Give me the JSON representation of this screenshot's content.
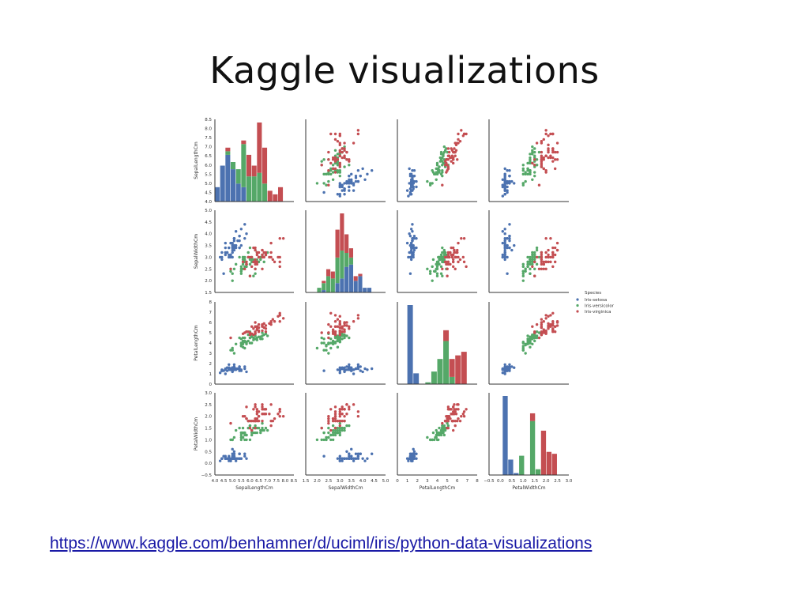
{
  "slide": {
    "title": "Kaggle visualizations",
    "link": "https://www.kaggle.com/benhamner/d/uciml/iris/python-data-visualizations"
  },
  "chart_data": {
    "type": "scatter",
    "subtype": "pairplot",
    "variables": [
      "SepalLengthCm",
      "SepalWidthCm",
      "PetalLengthCm",
      "PetalWidthCm"
    ],
    "axis_ranges": {
      "SepalLengthCm": [
        4.0,
        8.5
      ],
      "SepalWidthCm": [
        1.5,
        5.0
      ],
      "PetalLengthCm": [
        0,
        8
      ],
      "PetalWidthCm": [
        -0.5,
        3.0
      ]
    },
    "ticks": {
      "SepalLengthCm": [
        "4.0",
        "4.5",
        "5.0",
        "5.5",
        "6.0",
        "6.5",
        "7.0",
        "7.5",
        "8.0",
        "8.5"
      ],
      "SepalWidthCm": [
        "1.5",
        "2.0",
        "2.5",
        "3.0",
        "3.5",
        "4.0",
        "4.5",
        "5.0"
      ],
      "PetalLengthCm": [
        "0",
        "1",
        "2",
        "3",
        "4",
        "5",
        "6",
        "7",
        "8"
      ],
      "PetalWidthCm": [
        "−0.5",
        "0.0",
        "0.5",
        "1.0",
        "1.5",
        "2.0",
        "2.5",
        "3.0"
      ]
    },
    "legend": {
      "title": "Species",
      "placement": "right",
      "entries": [
        {
          "name": "Iris-setosa",
          "color": "#4c72b0"
        },
        {
          "name": "Iris-versicolor",
          "color": "#55a868"
        },
        {
          "name": "Iris-virginica",
          "color": "#c44e52"
        }
      ]
    },
    "grid": false,
    "histograms": {
      "SepalLengthCm": {
        "bins": [
          [
            4.0,
            4.3
          ],
          [
            4.3,
            4.6
          ],
          [
            4.6,
            4.9
          ],
          [
            4.9,
            5.2
          ],
          [
            5.2,
            5.5
          ],
          [
            5.5,
            5.8
          ],
          [
            5.8,
            6.1
          ],
          [
            6.1,
            6.4
          ],
          [
            6.4,
            6.7
          ],
          [
            6.7,
            7.0
          ],
          [
            7.0,
            7.3
          ],
          [
            7.3,
            7.6
          ],
          [
            7.6,
            7.9
          ]
        ],
        "setosa": [
          4,
          10,
          13,
          9,
          5,
          4,
          0,
          0,
          0,
          0,
          0,
          0,
          0
        ],
        "versicolor": [
          0,
          0,
          1,
          2,
          4,
          12,
          7,
          7,
          8,
          5,
          0,
          0,
          0
        ],
        "virginica": [
          0,
          0,
          1,
          0,
          0,
          1,
          6,
          3,
          14,
          10,
          3,
          2,
          4
        ]
      },
      "SepalWidthCm": {
        "bins": [
          [
            2.0,
            2.2
          ],
          [
            2.2,
            2.4
          ],
          [
            2.4,
            2.6
          ],
          [
            2.6,
            2.8
          ],
          [
            2.8,
            3.0
          ],
          [
            3.0,
            3.2
          ],
          [
            3.2,
            3.4
          ],
          [
            3.4,
            3.6
          ],
          [
            3.6,
            3.8
          ],
          [
            3.8,
            4.0
          ],
          [
            4.0,
            4.2
          ],
          [
            4.2,
            4.4
          ]
        ],
        "setosa": [
          0,
          1,
          0,
          0,
          4,
          6,
          11,
          12,
          5,
          7,
          2,
          2
        ],
        "versicolor": [
          2,
          3,
          7,
          6,
          11,
          12,
          6,
          3,
          0,
          0,
          0,
          0
        ],
        "virginica": [
          0,
          1,
          3,
          3,
          12,
          16,
          8,
          4,
          2,
          1,
          0,
          0
        ]
      },
      "PetalLengthCm": {
        "bins": [
          [
            1.0,
            1.6
          ],
          [
            1.6,
            2.2
          ],
          [
            2.2,
            2.8
          ],
          [
            2.8,
            3.4
          ],
          [
            3.4,
            4.0
          ],
          [
            4.0,
            4.6
          ],
          [
            4.6,
            5.2
          ],
          [
            5.2,
            5.8
          ],
          [
            5.8,
            6.4
          ],
          [
            6.4,
            7.0
          ]
        ],
        "setosa": [
          44,
          6,
          0,
          0,
          0,
          0,
          0,
          0,
          0,
          0
        ],
        "versicolor": [
          0,
          0,
          0,
          1,
          7,
          14,
          24,
          4,
          0,
          0
        ],
        "virginica": [
          0,
          0,
          0,
          0,
          0,
          0,
          6,
          10,
          16,
          18
        ]
      },
      "PetalWidthCm": {
        "bins": [
          [
            0.1,
            0.34
          ],
          [
            0.34,
            0.58
          ],
          [
            0.58,
            0.82
          ],
          [
            0.82,
            1.06
          ],
          [
            1.06,
            1.3
          ],
          [
            1.3,
            1.54
          ],
          [
            1.54,
            1.78
          ],
          [
            1.78,
            2.02
          ],
          [
            2.02,
            2.26
          ],
          [
            2.26,
            2.5
          ]
        ],
        "setosa": [
          41,
          8,
          1,
          0,
          0,
          0,
          0,
          0,
          0,
          0
        ],
        "versicolor": [
          0,
          0,
          0,
          10,
          0,
          28,
          3,
          0,
          0,
          0
        ],
        "virginica": [
          0,
          0,
          0,
          0,
          0,
          4,
          0,
          23,
          12,
          11
        ]
      }
    },
    "species_points": {
      "setosa": {
        "SepalLengthCm": [
          5.1,
          4.9,
          4.7,
          4.6,
          5.0,
          5.4,
          4.6,
          5.0,
          4.4,
          4.9,
          5.4,
          4.8,
          4.8,
          4.3,
          5.8,
          5.7,
          5.4,
          5.1,
          5.7,
          5.1,
          5.4,
          5.1,
          4.6,
          5.1,
          4.8,
          5.0,
          5.0,
          5.2,
          5.2,
          4.7,
          4.8,
          5.4,
          5.2,
          5.5,
          4.9,
          5.0,
          5.5,
          4.9,
          4.4,
          5.1,
          5.0,
          4.5,
          4.4,
          5.0,
          5.1,
          4.8,
          5.1,
          4.6,
          5.3,
          5.0
        ],
        "SepalWidthCm": [
          3.5,
          3.0,
          3.2,
          3.1,
          3.6,
          3.9,
          3.4,
          3.4,
          2.9,
          3.1,
          3.7,
          3.4,
          3.0,
          3.0,
          4.0,
          4.4,
          3.9,
          3.5,
          3.8,
          3.8,
          3.4,
          3.7,
          3.6,
          3.3,
          3.4,
          3.0,
          3.4,
          3.5,
          3.4,
          3.2,
          3.1,
          3.4,
          4.1,
          4.2,
          3.1,
          3.2,
          3.5,
          3.6,
          3.0,
          3.4,
          3.5,
          2.3,
          3.2,
          3.5,
          3.8,
          3.0,
          3.8,
          3.2,
          3.7,
          3.3
        ],
        "PetalLengthCm": [
          1.4,
          1.4,
          1.3,
          1.5,
          1.4,
          1.7,
          1.4,
          1.5,
          1.4,
          1.5,
          1.5,
          1.6,
          1.4,
          1.1,
          1.2,
          1.5,
          1.3,
          1.4,
          1.7,
          1.5,
          1.7,
          1.5,
          1.0,
          1.7,
          1.9,
          1.6,
          1.6,
          1.5,
          1.4,
          1.6,
          1.6,
          1.5,
          1.5,
          1.4,
          1.5,
          1.2,
          1.3,
          1.4,
          1.3,
          1.5,
          1.3,
          1.3,
          1.3,
          1.6,
          1.9,
          1.4,
          1.6,
          1.4,
          1.5,
          1.4
        ],
        "PetalWidthCm": [
          0.2,
          0.2,
          0.2,
          0.2,
          0.2,
          0.4,
          0.3,
          0.2,
          0.2,
          0.1,
          0.2,
          0.2,
          0.1,
          0.1,
          0.2,
          0.4,
          0.4,
          0.3,
          0.3,
          0.3,
          0.2,
          0.4,
          0.2,
          0.5,
          0.2,
          0.2,
          0.4,
          0.2,
          0.2,
          0.2,
          0.2,
          0.4,
          0.1,
          0.2,
          0.2,
          0.2,
          0.2,
          0.1,
          0.2,
          0.2,
          0.3,
          0.3,
          0.2,
          0.6,
          0.4,
          0.3,
          0.2,
          0.2,
          0.2,
          0.2
        ]
      },
      "versicolor": {
        "SepalLengthCm": [
          7.0,
          6.4,
          6.9,
          5.5,
          6.5,
          5.7,
          6.3,
          4.9,
          6.6,
          5.2,
          5.0,
          5.9,
          6.0,
          6.1,
          5.6,
          6.7,
          5.6,
          5.8,
          6.2,
          5.6,
          5.9,
          6.1,
          6.3,
          6.1,
          6.4,
          6.6,
          6.8,
          6.7,
          6.0,
          5.7,
          5.5,
          5.5,
          5.8,
          6.0,
          5.4,
          6.0,
          6.7,
          6.3,
          5.6,
          5.5,
          5.5,
          6.1,
          5.8,
          5.0,
          5.6,
          5.7,
          5.7,
          6.2,
          5.1,
          5.7
        ],
        "SepalWidthCm": [
          3.2,
          3.2,
          3.1,
          2.3,
          2.8,
          2.8,
          3.3,
          2.4,
          2.9,
          2.7,
          2.0,
          3.0,
          2.2,
          2.9,
          2.9,
          3.1,
          3.0,
          2.7,
          2.2,
          2.5,
          3.2,
          2.8,
          2.5,
          2.8,
          2.9,
          3.0,
          2.8,
          3.0,
          2.9,
          2.6,
          2.4,
          2.4,
          2.7,
          2.7,
          3.0,
          3.4,
          3.1,
          2.3,
          3.0,
          2.5,
          2.6,
          3.0,
          2.6,
          2.3,
          2.7,
          3.0,
          2.9,
          2.9,
          2.5,
          2.8
        ],
        "PetalLengthCm": [
          4.7,
          4.5,
          4.9,
          4.0,
          4.6,
          4.5,
          4.7,
          3.3,
          4.6,
          3.9,
          3.5,
          4.2,
          4.0,
          4.7,
          3.6,
          4.4,
          4.5,
          4.1,
          4.5,
          3.9,
          4.8,
          4.0,
          4.9,
          4.7,
          4.3,
          4.4,
          4.8,
          5.0,
          4.5,
          3.5,
          3.8,
          3.7,
          3.9,
          5.1,
          4.5,
          4.5,
          4.7,
          4.4,
          4.1,
          4.0,
          4.4,
          4.6,
          4.0,
          3.3,
          4.2,
          4.2,
          4.2,
          4.3,
          3.0,
          4.1
        ],
        "PetalWidthCm": [
          1.4,
          1.5,
          1.5,
          1.3,
          1.5,
          1.3,
          1.6,
          1.0,
          1.3,
          1.4,
          1.0,
          1.5,
          1.0,
          1.4,
          1.3,
          1.4,
          1.5,
          1.0,
          1.5,
          1.1,
          1.8,
          1.3,
          1.5,
          1.2,
          1.3,
          1.4,
          1.4,
          1.7,
          1.5,
          1.0,
          1.1,
          1.0,
          1.2,
          1.6,
          1.5,
          1.6,
          1.5,
          1.3,
          1.3,
          1.3,
          1.2,
          1.4,
          1.2,
          1.0,
          1.3,
          1.2,
          1.3,
          1.3,
          1.1,
          1.3
        ]
      },
      "virginica": {
        "SepalLengthCm": [
          6.3,
          5.8,
          7.1,
          6.3,
          6.5,
          7.6,
          4.9,
          7.3,
          6.7,
          7.2,
          6.5,
          6.4,
          6.8,
          5.7,
          5.8,
          6.4,
          6.5,
          7.7,
          7.7,
          6.0,
          6.9,
          5.6,
          7.7,
          6.3,
          6.7,
          7.2,
          6.2,
          6.1,
          6.4,
          7.2,
          7.4,
          7.9,
          6.4,
          6.3,
          6.1,
          7.7,
          6.3,
          6.4,
          6.0,
          6.9,
          6.7,
          6.9,
          5.8,
          6.8,
          6.7,
          6.7,
          6.3,
          6.5,
          6.2,
          5.9
        ],
        "SepalWidthCm": [
          3.3,
          2.7,
          3.0,
          2.9,
          3.0,
          3.0,
          2.5,
          2.9,
          2.5,
          3.6,
          3.2,
          2.7,
          3.0,
          2.5,
          2.8,
          3.2,
          3.0,
          3.8,
          2.6,
          2.2,
          3.2,
          2.8,
          2.8,
          2.7,
          3.3,
          3.2,
          2.8,
          3.0,
          2.8,
          3.0,
          2.8,
          3.8,
          2.8,
          2.8,
          2.6,
          3.0,
          3.4,
          3.1,
          3.0,
          3.1,
          3.1,
          3.1,
          2.7,
          3.2,
          3.3,
          3.0,
          2.5,
          3.0,
          3.4,
          3.0
        ],
        "PetalLengthCm": [
          6.0,
          5.1,
          5.9,
          5.6,
          5.8,
          6.6,
          4.5,
          6.3,
          5.8,
          6.1,
          5.1,
          5.3,
          5.5,
          5.0,
          5.1,
          5.3,
          5.5,
          6.7,
          6.9,
          5.0,
          5.7,
          4.9,
          6.7,
          4.9,
          5.7,
          6.0,
          4.8,
          4.9,
          5.6,
          5.8,
          6.1,
          6.4,
          5.6,
          5.1,
          5.6,
          6.1,
          5.6,
          5.5,
          4.8,
          5.4,
          5.6,
          5.1,
          5.1,
          5.9,
          5.7,
          5.2,
          5.0,
          5.2,
          5.4,
          5.1
        ],
        "PetalWidthCm": [
          2.5,
          1.9,
          2.1,
          1.8,
          2.2,
          2.1,
          1.7,
          1.8,
          1.8,
          2.5,
          2.0,
          1.9,
          2.1,
          2.0,
          2.4,
          2.3,
          1.8,
          2.2,
          2.3,
          1.5,
          2.3,
          2.0,
          2.0,
          1.8,
          2.1,
          1.8,
          1.8,
          1.8,
          2.1,
          1.6,
          1.9,
          2.0,
          2.2,
          1.5,
          1.4,
          2.3,
          2.4,
          1.8,
          1.8,
          2.1,
          2.4,
          2.3,
          1.9,
          2.3,
          2.5,
          2.3,
          1.9,
          2.0,
          2.3,
          1.8
        ]
      }
    }
  }
}
